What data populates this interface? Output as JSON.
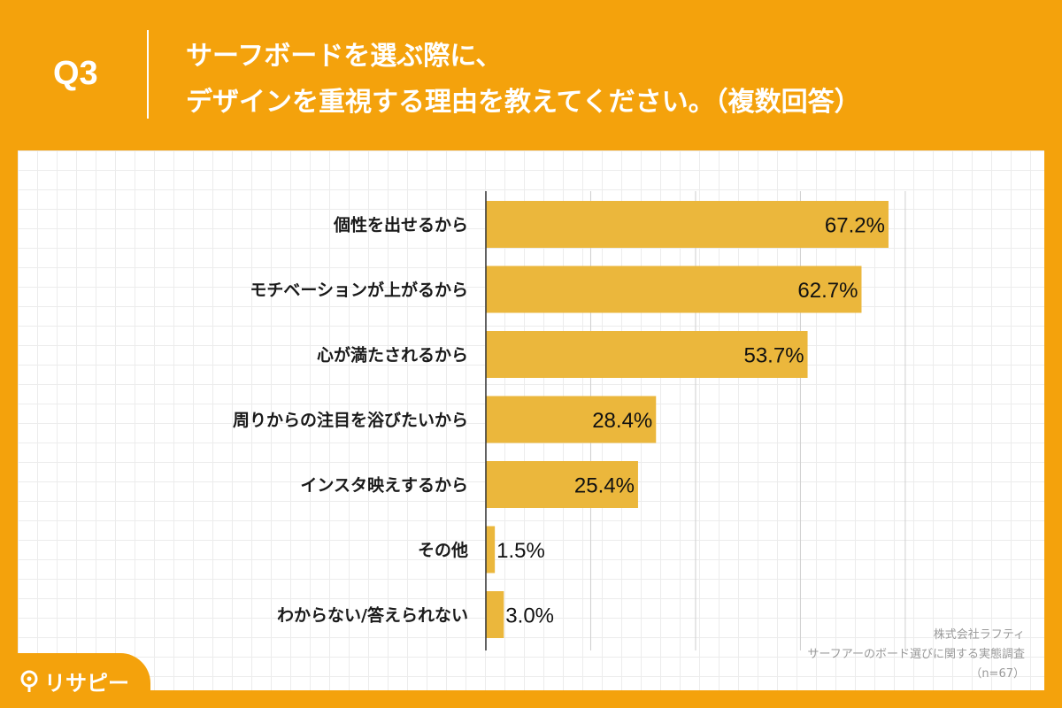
{
  "header": {
    "question_number": "Q3",
    "title_line1": "サーフボードを選ぶ際に、",
    "title_line2": "デザインを重視する理由を教えてください。（複数回答）"
  },
  "colors": {
    "background": "#f4a20c",
    "bar": "#ebb73c",
    "grid": "#cfcfcf"
  },
  "chart_data": {
    "type": "bar",
    "orientation": "horizontal",
    "title": "デザインを重視する理由（複数回答）",
    "categories": [
      "個性を出せるから",
      "モチベーションが上がるから",
      "心が満たされるから",
      "周りからの注目を浴びたいから",
      "インスタ映えするから",
      "その他",
      "わからない/答えられない"
    ],
    "values": [
      67.2,
      62.7,
      53.7,
      28.4,
      25.4,
      1.5,
      3.0
    ],
    "value_labels": [
      "67.2%",
      "62.7%",
      "53.7%",
      "28.4%",
      "25.4%",
      "1.5%",
      "3.0%"
    ],
    "unit": "%",
    "xlim": [
      0,
      70
    ],
    "grid_step": 17.5,
    "grid": true
  },
  "footer": {
    "company": "株式会社ラフティ",
    "survey": "サーフアーのボード選びに関する実態調査",
    "sample": "（n=67）"
  },
  "logo": {
    "text": "リサピー",
    "icon": "location-pin-icon"
  }
}
